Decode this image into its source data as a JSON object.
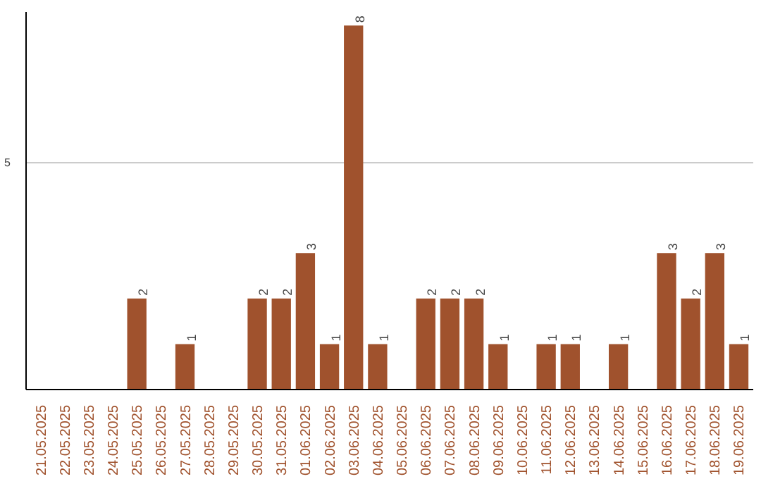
{
  "chart_data": {
    "type": "bar",
    "categories": [
      "21.05.2025",
      "22.05.2025",
      "23.05.2025",
      "24.05.2025",
      "25.05.2025",
      "26.05.2025",
      "27.05.2025",
      "28.05.2025",
      "29.05.2025",
      "30.05.2025",
      "31.05.2025",
      "01.06.2025",
      "02.06.2025",
      "03.06.2025",
      "04.06.2025",
      "05.06.2025",
      "06.06.2025",
      "07.06.2025",
      "08.06.2025",
      "09.06.2025",
      "10.06.2025",
      "11.06.2025",
      "12.06.2025",
      "13.06.2025",
      "14.06.2025",
      "15.06.2025",
      "16.06.2025",
      "17.06.2025",
      "18.06.2025",
      "19.06.2025"
    ],
    "values": [
      0,
      0,
      0,
      0,
      2,
      0,
      1,
      0,
      0,
      2,
      2,
      3,
      1,
      8,
      1,
      0,
      2,
      2,
      2,
      1,
      0,
      1,
      1,
      0,
      1,
      0,
      3,
      2,
      3,
      1
    ],
    "value_labels": [
      null,
      null,
      null,
      null,
      "2",
      null,
      "1",
      null,
      null,
      "2",
      "2",
      "3",
      "1",
      "8",
      "1",
      null,
      "2",
      "2",
      "2",
      "1",
      null,
      "1",
      "1",
      null,
      "1",
      null,
      "3",
      "2",
      "3",
      "1"
    ],
    "color": "#a0522d",
    "ylim": [
      0,
      8.3
    ],
    "yticks": [
      5
    ],
    "grid": "y"
  }
}
